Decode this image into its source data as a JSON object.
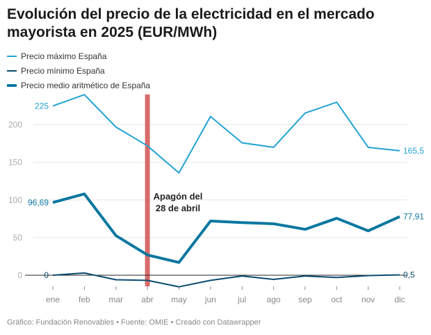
{
  "title": "Evolución del precio de la electricidad en el mercado mayorista en 2025 (EUR/MWh)",
  "footer": "Gráfico: Fundación Renovables • Fuente: OMIE • Creado con Datawrapper",
  "chart_data": {
    "type": "line",
    "title": "Evolución del precio de la electricidad en el mercado mayorista en 2025 (EUR/MWh)",
    "categories": [
      "ene",
      "feb",
      "mar",
      "abr",
      "may",
      "jun",
      "jul",
      "ago",
      "sep",
      "oct",
      "nov",
      "dic"
    ],
    "ylim": [
      -15,
      240
    ],
    "yticks": [
      0,
      50,
      100,
      150,
      200
    ],
    "grid": true,
    "legend": "top-left",
    "series": [
      {
        "name": "Precio máximo España",
        "color": "#22a3d2",
        "width": 2,
        "values": [
          225,
          240,
          197,
          172,
          136,
          211,
          176,
          170,
          215.5,
          230,
          170,
          165.5
        ],
        "start_label": "225",
        "end_label": "165,5"
      },
      {
        "name": "Precio mínimo España",
        "color": "#0b4a70",
        "width": 2,
        "values": [
          0,
          3,
          -6,
          -6.8,
          -15.4,
          -6.8,
          -1,
          -5.5,
          -1,
          -3,
          -0.5,
          0.5
        ],
        "start_label": "0",
        "end_label": "0,5"
      },
      {
        "name": "Precio medio aritmético de España",
        "color": "#0a77a0",
        "width": 4,
        "values": [
          96.69,
          108,
          52.7,
          27,
          17,
          72,
          70,
          68.4,
          61,
          75.7,
          59,
          77.91
        ],
        "start_label": "96,69",
        "end_label": "77,91"
      }
    ],
    "annotation": {
      "text_line1": "Apagón del",
      "text_line2": "28 de abril",
      "month": "abr",
      "color": "#d86b6b"
    }
  }
}
